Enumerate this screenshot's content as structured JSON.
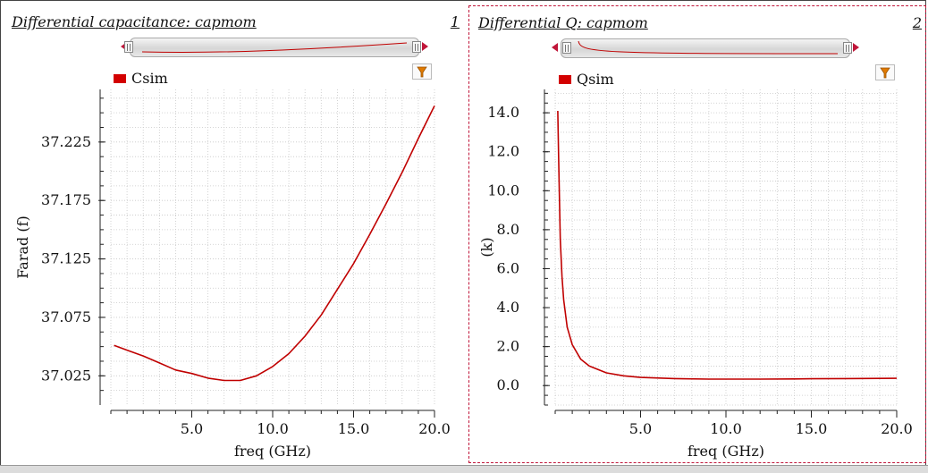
{
  "colors": {
    "trace": "#c00000",
    "selected_border": "#c0163a",
    "filter_icon": "#e07a00"
  },
  "chart_data": [
    {
      "type": "line",
      "panel_title": "Differential capacitance: capmom",
      "panel_number": "1",
      "legend": [
        "Csim"
      ],
      "series": [
        {
          "name": "Csim",
          "x": [
            0.2,
            1,
            2,
            3,
            4,
            5,
            6,
            7,
            7.5,
            8,
            9,
            10,
            11,
            12,
            13,
            14,
            15,
            16,
            17,
            18,
            19,
            20
          ],
          "values": [
            37.051,
            37.047,
            37.042,
            37.036,
            37.03,
            37.027,
            37.023,
            37.021,
            37.021,
            37.021,
            37.025,
            37.033,
            37.044,
            37.059,
            37.077,
            37.099,
            37.121,
            37.146,
            37.172,
            37.199,
            37.228,
            37.256
          ]
        }
      ],
      "xlabel": "freq (GHz)",
      "ylabel": "Farad (f)",
      "xlim": [
        0,
        20
      ],
      "ylim": [
        37.0,
        37.27
      ],
      "x_ticks": [
        "5.0",
        "10.0",
        "15.0",
        "20.0"
      ],
      "x_tick_values": [
        5,
        10,
        15,
        20
      ],
      "y_ticks": [
        "37.025",
        "37.075",
        "37.125",
        "37.175",
        "37.225"
      ],
      "y_tick_values": [
        37.025,
        37.075,
        37.125,
        37.175,
        37.225
      ],
      "grid": true
    },
    {
      "type": "line",
      "panel_title": "Differential Q: capmom",
      "panel_number": "2",
      "legend": [
        "Qsim"
      ],
      "series": [
        {
          "name": "Qsim",
          "x": [
            0.15,
            0.2,
            0.25,
            0.3,
            0.4,
            0.5,
            0.7,
            1,
            1.5,
            2,
            3,
            4,
            5,
            7,
            9,
            10,
            12,
            14,
            15,
            17,
            20
          ],
          "values": [
            14.1,
            11.8,
            9.5,
            7.5,
            5.6,
            4.4,
            3.0,
            2.1,
            1.35,
            1.0,
            0.65,
            0.5,
            0.42,
            0.36,
            0.33,
            0.33,
            0.33,
            0.34,
            0.35,
            0.36,
            0.37
          ]
        }
      ],
      "xlabel": "freq (GHz)",
      "ylabel": "(k)",
      "xlim": [
        0,
        20
      ],
      "ylim": [
        -1,
        15.2
      ],
      "x_ticks": [
        "5.0",
        "10.0",
        "15.0",
        "20.0"
      ],
      "x_tick_values": [
        5,
        10,
        15,
        20
      ],
      "y_ticks": [
        "0.0",
        "2.0",
        "4.0",
        "6.0",
        "8.0",
        "10.0",
        "12.0",
        "14.0"
      ],
      "y_tick_values": [
        0,
        2,
        4,
        6,
        8,
        10,
        12,
        14
      ],
      "grid": true
    }
  ]
}
